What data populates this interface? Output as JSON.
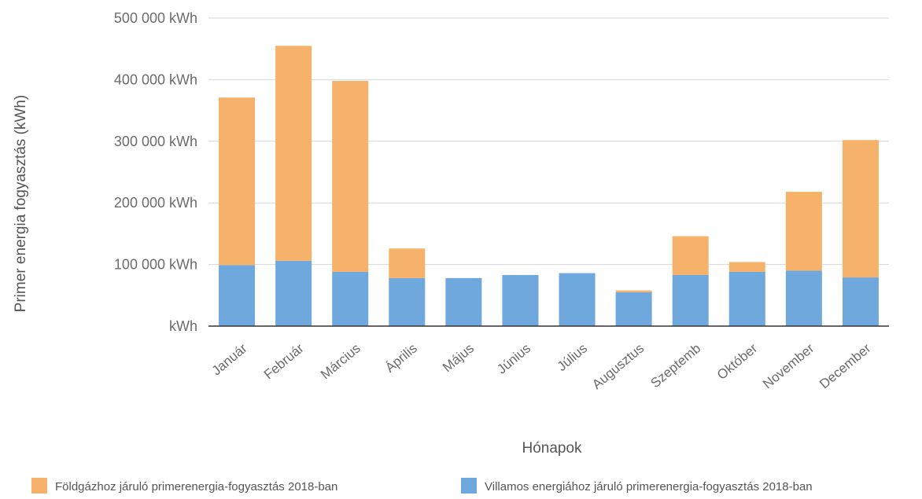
{
  "chart_data": {
    "type": "bar",
    "stacked": true,
    "categories": [
      "Január",
      "Február",
      "Március",
      "Április",
      "Május",
      "Június",
      "Július",
      "Augusztus",
      "Szeptemb",
      "Október",
      "November",
      "December"
    ],
    "series": [
      {
        "name": "Villamos energiához járuló primerenergia-fogyasztás 2018-ban",
        "color": "#6fa8dc",
        "values": [
          99000,
          106000,
          88000,
          78000,
          78000,
          83000,
          86000,
          55000,
          83000,
          88000,
          90000,
          79000
        ]
      },
      {
        "name": "Földgázhoz járuló primerenergia-fogyasztás 2018-ban",
        "color": "#f6b26b",
        "values": [
          272000,
          349000,
          310000,
          48000,
          0,
          0,
          0,
          3000,
          63000,
          16000,
          128000,
          223000
        ]
      }
    ],
    "xlabel": "Hónapok",
    "ylabel": "Primer energia fogyasztás (kWh)",
    "ylim": [
      0,
      500000
    ],
    "yticks": [
      0,
      100000,
      200000,
      300000,
      400000,
      500000
    ],
    "ytick_labels": [
      "kWh",
      "100 000  kWh",
      "200 000  kWh",
      "300 000  kWh",
      "400 000  kWh",
      "500 000  kWh"
    ],
    "grid": true,
    "legend": {
      "position": "bottom",
      "items": [
        {
          "label": "Földgázhoz járuló primerenergia-fogyasztás 2018-ban",
          "color": "#f6b26b"
        },
        {
          "label": "Villamos energiához járuló primerenergia-fogyasztás 2018-ban",
          "color": "#6fa8dc"
        }
      ]
    }
  }
}
